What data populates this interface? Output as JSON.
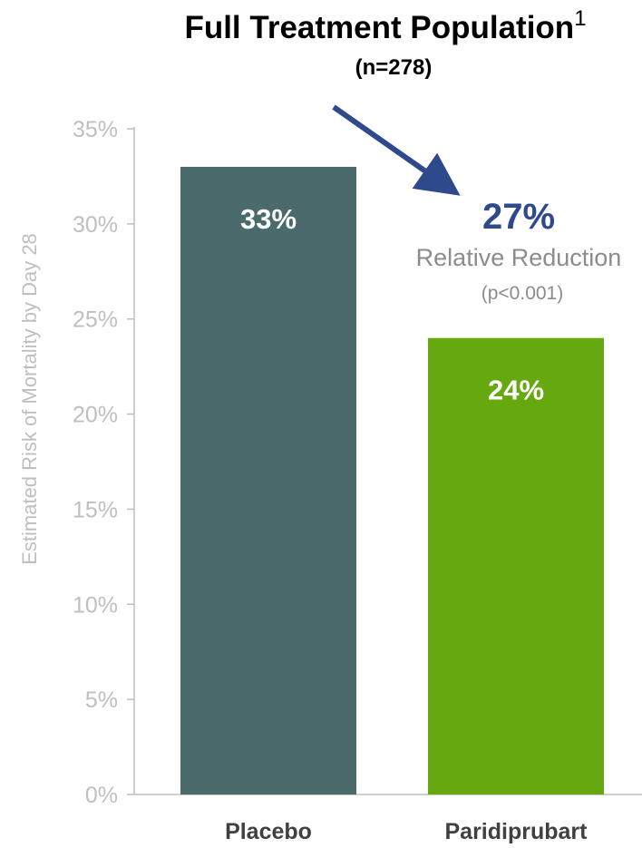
{
  "chart_data": {
    "type": "bar",
    "title": "Full Treatment Population",
    "title_superscript": "1",
    "subtitle": "(n=278)",
    "ylabel": "Estimated Risk of Mortality by Day 28",
    "xlabel": "",
    "ylim": [
      0,
      35
    ],
    "y_ticks": [
      0,
      5,
      10,
      15,
      20,
      25,
      30,
      35
    ],
    "y_tick_labels": [
      "0%",
      "5%",
      "10%",
      "15%",
      "20%",
      "25%",
      "30%",
      "35%"
    ],
    "grid": false,
    "legend": "none",
    "categories": [
      "Placebo",
      "Paridiprubart"
    ],
    "values": [
      33,
      24
    ],
    "data_labels": [
      "33%",
      "24%"
    ],
    "colors": [
      "#4a6a6b",
      "#66a80f"
    ],
    "annotation": {
      "value_label": "27%",
      "text": "Relative Reduction",
      "p_value": "(p<0.001)",
      "value_color": "#2e4a8c",
      "text_color": "#8c8c8c",
      "arrow_color": "#2e4a8c"
    }
  }
}
